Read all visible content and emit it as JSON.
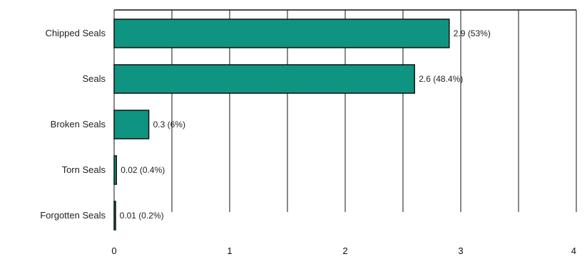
{
  "chart_data": {
    "type": "bar",
    "orientation": "horizontal",
    "categories": [
      "Chipped Seals",
      "Seals",
      "Broken Seals",
      "Torn Seals",
      "Forgotten Seals"
    ],
    "values": [
      2.9,
      2.6,
      0.3,
      0.02,
      0.01
    ],
    "value_labels": [
      "2.9 (53%)",
      "2.6 (48.4%)",
      "0.3 (6%)",
      "0.02 (0.4%)",
      "0.01 (0.2%)"
    ],
    "xlim": [
      0,
      4
    ],
    "xticks": [
      0,
      1,
      2,
      3,
      4
    ],
    "xtick_labels": [
      "0",
      "1",
      "2",
      "3",
      "4"
    ],
    "grid": "vertical",
    "bar_color": "#0e9480",
    "bar_edge_color": "#111111"
  }
}
